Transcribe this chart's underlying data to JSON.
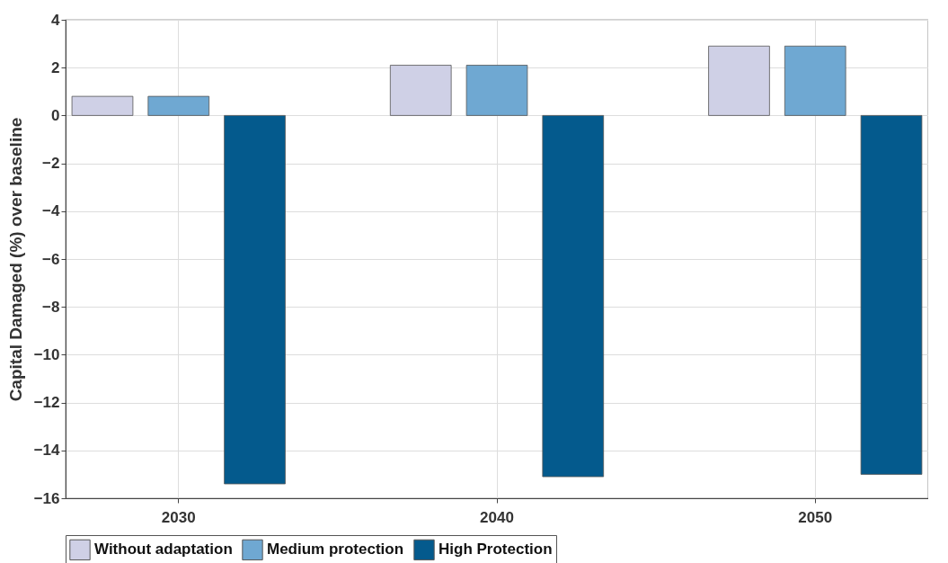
{
  "chart_data": {
    "type": "bar",
    "ylabel": "Capital Damaged (%) over baseline",
    "categories": [
      "2030",
      "2040",
      "2050"
    ],
    "series": [
      {
        "name": "Without adaptation",
        "color": "#cfd0e6",
        "values": [
          0.8,
          2.1,
          2.9
        ]
      },
      {
        "name": "Medium protection",
        "color": "#6fa8d2",
        "values": [
          0.8,
          2.1,
          2.9
        ]
      },
      {
        "name": "High Protection",
        "color": "#045a8d",
        "values": [
          -15.4,
          -15.1,
          -15.0
        ]
      }
    ],
    "ylim": [
      -16,
      4
    ],
    "yticks": [
      -16,
      -14,
      -12,
      -10,
      -8,
      -6,
      -4,
      -2,
      0,
      2,
      4
    ],
    "grid": true,
    "legend": "bottom"
  }
}
